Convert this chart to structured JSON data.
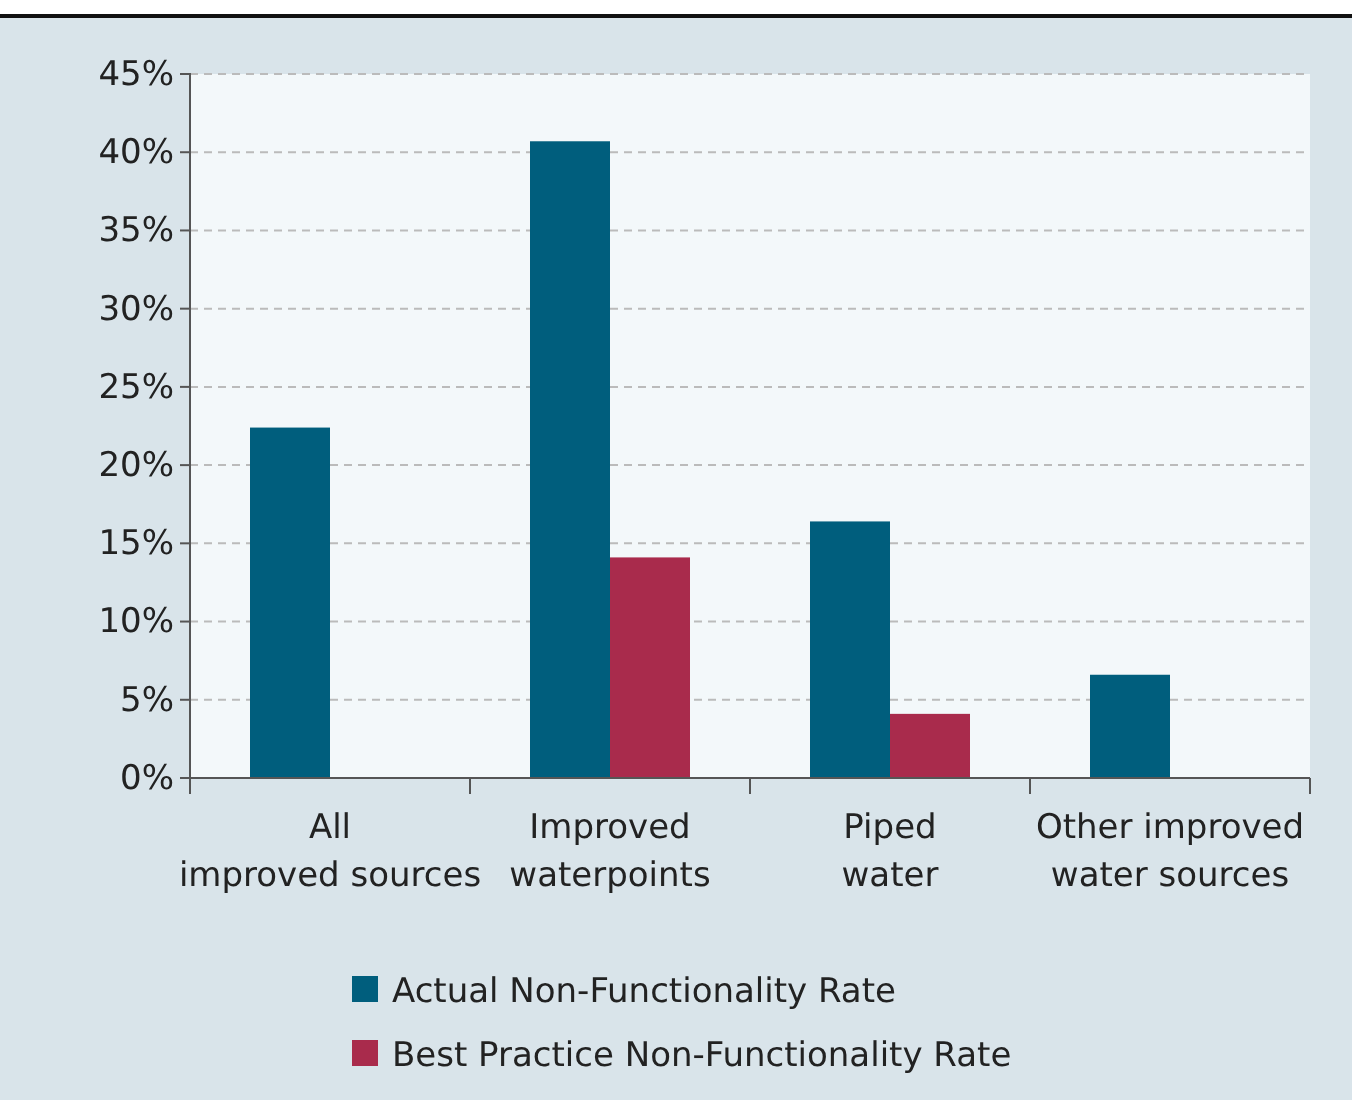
{
  "chart_data": {
    "type": "bar",
    "categories": [
      "All improved sources",
      "Improved waterpoints",
      "Piped water",
      "Other improved water sources"
    ],
    "series": [
      {
        "name": "Actual Non-Functionality Rate",
        "color": "#005e7d",
        "values": [
          22.4,
          40.7,
          16.4,
          6.6
        ]
      },
      {
        "name": "Best Practice Non-Functionality Rate",
        "color": "#a92b4c",
        "values": [
          null,
          14.1,
          4.1,
          null
        ]
      }
    ],
    "ylim": [
      0,
      45
    ],
    "yticks": [
      {
        "value": 0,
        "label": "0%"
      },
      {
        "value": 5,
        "label": "5%"
      },
      {
        "value": 10,
        "label": "10%"
      },
      {
        "value": 15,
        "label": "15%"
      },
      {
        "value": 20,
        "label": "20%"
      },
      {
        "value": 25,
        "label": "25%"
      },
      {
        "value": 30,
        "label": "30%"
      },
      {
        "value": 35,
        "label": "35%"
      },
      {
        "value": 40,
        "label": "40%"
      },
      {
        "value": 45,
        "label": "45%"
      }
    ],
    "grid": "y",
    "legend": "bottom"
  }
}
